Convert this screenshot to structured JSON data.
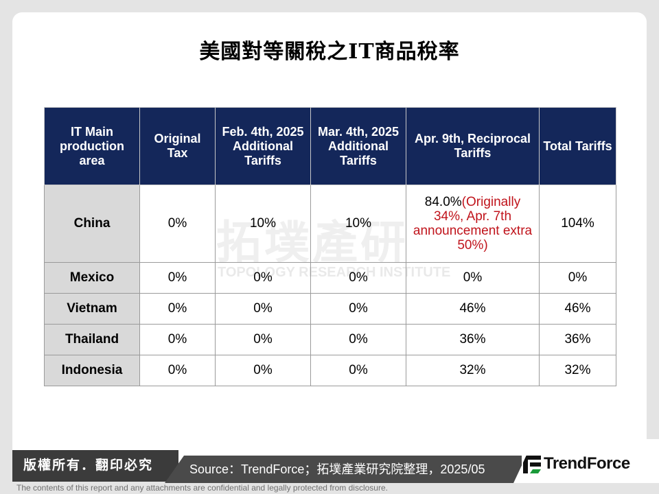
{
  "title": "美國對等關稅之IT商品稅率",
  "watermark": {
    "text_main": "拓墣產研",
    "text_sub": "TOPOLOGY RESEARCH INSTITUTE"
  },
  "table": {
    "headers": [
      "IT Main production area",
      "Original Tax",
      "Feb. 4th, 2025 Additional Tariffs",
      "Mar. 4th, 2025 Additional Tariffs",
      "Apr. 9th, Reciprocal Tariffs",
      "Total Tariffs"
    ],
    "rows": [
      {
        "area": "China",
        "original": "0%",
        "feb": "10%",
        "mar": "10%",
        "apr_value": "84.0%",
        "apr_note": "(Originally 34%, Apr. 7th announcement extra 50%)",
        "total": "104%"
      },
      {
        "area": "Mexico",
        "original": "0%",
        "feb": "0%",
        "mar": "0%",
        "apr": "0%",
        "total": "0%"
      },
      {
        "area": "Vietnam",
        "original": "0%",
        "feb": "0%",
        "mar": "0%",
        "apr": "46%",
        "total": "46%"
      },
      {
        "area": "Thailand",
        "original": "0%",
        "feb": "0%",
        "mar": "0%",
        "apr": "36%",
        "total": "36%"
      },
      {
        "area": "Indonesia",
        "original": "0%",
        "feb": "0%",
        "mar": "0%",
        "apr": "32%",
        "total": "32%"
      }
    ]
  },
  "footer": {
    "copyright": "版權所有．翻印必究",
    "source": "Source：TrendForce；拓墣產業研究院整理，2025/05",
    "brand": "TrendForce",
    "disclaimer": "The contents of this report and any attachments are confidential and legally protected from disclosure."
  },
  "colors": {
    "header_bg": "#14275a",
    "area_bg": "#d9d9d9",
    "note_red": "#c0131b",
    "footer_dark": "#3b3b3b"
  }
}
